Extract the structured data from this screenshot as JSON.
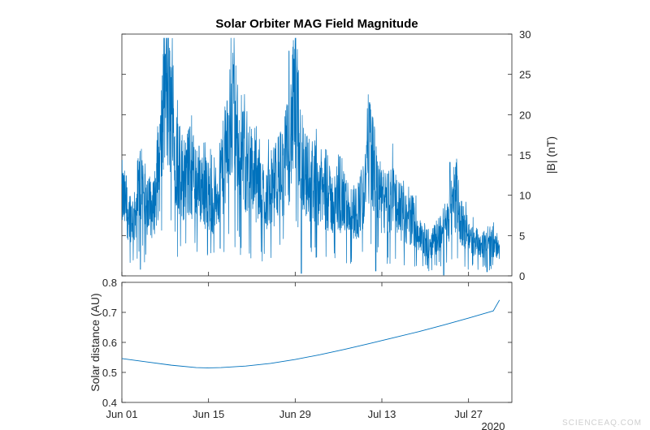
{
  "chart_data": [
    {
      "type": "line",
      "title": "Solar Orbiter MAG Field Magnitude",
      "ylabel": "|B| (nT)",
      "y_axis_side": "right",
      "ylim": [
        0,
        30
      ],
      "yticks": [
        0,
        5,
        10,
        15,
        20,
        25,
        30
      ],
      "xlim": [
        "2020-06-01",
        "2020-08-03"
      ],
      "grid": false,
      "color": "#0072BD",
      "series": [
        {
          "x": [
            "2020-06-01",
            "2020-06-02",
            "2020-06-03",
            "2020-06-04",
            "2020-06-05",
            "2020-06-06",
            "2020-06-07",
            "2020-06-08",
            "2020-06-09",
            "2020-06-10",
            "2020-06-11",
            "2020-06-12",
            "2020-06-13",
            "2020-06-14",
            "2020-06-15",
            "2020-06-16",
            "2020-06-17",
            "2020-06-18",
            "2020-06-19",
            "2020-06-20",
            "2020-06-21",
            "2020-06-22",
            "2020-06-23",
            "2020-06-24",
            "2020-06-25",
            "2020-06-26",
            "2020-06-27",
            "2020-06-28",
            "2020-06-29",
            "2020-06-30",
            "2020-07-01",
            "2020-07-02",
            "2020-07-03",
            "2020-07-04",
            "2020-07-05",
            "2020-07-06",
            "2020-07-07",
            "2020-07-08",
            "2020-07-09",
            "2020-07-10",
            "2020-07-11",
            "2020-07-12",
            "2020-07-13",
            "2020-07-14",
            "2020-07-15",
            "2020-07-16",
            "2020-07-17",
            "2020-07-18",
            "2020-07-19",
            "2020-07-20",
            "2020-07-21",
            "2020-07-22",
            "2020-07-23",
            "2020-07-24",
            "2020-07-25",
            "2020-07-26",
            "2020-07-27",
            "2020-07-28",
            "2020-07-29",
            "2020-07-30",
            "2020-07-31",
            "2020-08-01"
          ],
          "values": [
            10,
            8,
            7,
            12,
            9,
            8,
            13,
            23,
            20,
            14,
            12,
            13,
            12,
            11,
            10,
            9,
            12,
            16,
            21,
            15,
            14,
            13,
            11,
            10,
            10,
            12,
            13,
            16,
            22,
            15,
            12,
            12,
            11,
            10,
            9,
            9,
            9,
            8,
            8,
            10,
            17,
            12,
            9,
            9,
            10,
            8,
            7,
            7,
            5,
            4,
            4,
            5,
            6,
            8,
            10,
            6,
            5,
            4,
            4,
            4,
            4,
            3
          ],
          "peaks": [
            {
              "x": "2020-06-08",
              "y": 27.5
            },
            {
              "x": "2020-06-19",
              "y": 26.2
            },
            {
              "x": "2020-06-28",
              "y": 27.9
            },
            {
              "x": "2020-07-11",
              "y": 21.5
            },
            {
              "x": "2020-07-24",
              "y": 14.1
            }
          ],
          "troughs": [
            {
              "x": "2020-06-04",
              "y": 0.8
            },
            {
              "x": "2020-06-30",
              "y": 0.3
            },
            {
              "x": "2020-07-12",
              "y": 0.6
            },
            {
              "x": "2020-07-23",
              "y": 0.1
            },
            {
              "x": "2020-07-30",
              "y": 0.5
            }
          ]
        }
      ]
    },
    {
      "type": "line",
      "ylabel": "Solar distance (AU)",
      "y_axis_side": "left",
      "ylim": [
        0.4,
        0.8
      ],
      "yticks": [
        0.4,
        0.5,
        0.6,
        0.7,
        0.8
      ],
      "xlim": [
        "2020-06-01",
        "2020-08-03"
      ],
      "xticks": [
        "Jun 01",
        "Jun 15",
        "Jun 29",
        "Jul 13",
        "Jul 27"
      ],
      "xtick_dates": [
        "2020-06-01",
        "2020-06-15",
        "2020-06-29",
        "2020-07-13",
        "2020-07-27"
      ],
      "year_label": "2020",
      "grid": false,
      "color": "#0072BD",
      "series": [
        {
          "x": [
            "2020-06-01",
            "2020-06-05",
            "2020-06-09",
            "2020-06-13",
            "2020-06-15",
            "2020-06-17",
            "2020-06-21",
            "2020-06-25",
            "2020-06-29",
            "2020-07-03",
            "2020-07-07",
            "2020-07-11",
            "2020-07-15",
            "2020-07-19",
            "2020-07-23",
            "2020-07-27",
            "2020-07-31",
            "2020-08-01"
          ],
          "values": [
            0.546,
            0.535,
            0.524,
            0.516,
            0.515,
            0.516,
            0.521,
            0.53,
            0.543,
            0.559,
            0.577,
            0.596,
            0.616,
            0.636,
            0.658,
            0.681,
            0.705,
            0.741
          ]
        }
      ]
    }
  ],
  "watermark": "SCIENCEAQ.COM"
}
